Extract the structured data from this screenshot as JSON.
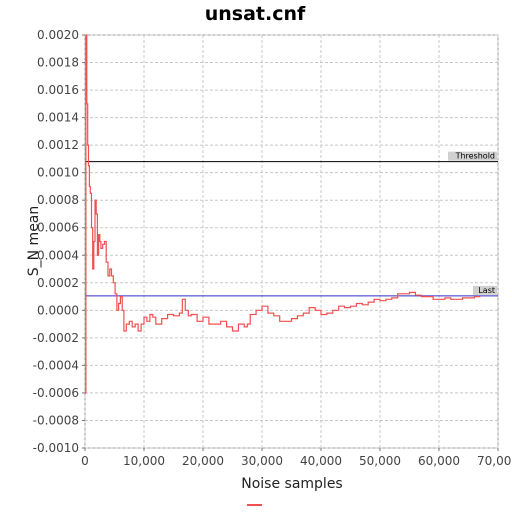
{
  "chart_data": {
    "type": "line",
    "title": "unsat.cnf",
    "xlabel": "Noise samples",
    "ylabel": "S_N mean",
    "xlim": [
      0,
      70000
    ],
    "ylim": [
      -0.001,
      0.002
    ],
    "xticks": [
      0,
      10000,
      20000,
      30000,
      40000,
      50000,
      60000,
      70000
    ],
    "xtick_labels": [
      "0",
      "10,000",
      "20,000",
      "30,000",
      "40,000",
      "50,000",
      "60,000",
      "70,000"
    ],
    "yticks": [
      -0.001,
      -0.0008,
      -0.0006,
      -0.0004,
      -0.0002,
      0.0,
      0.0002,
      0.0004,
      0.0006,
      0.0008,
      0.001,
      0.0012,
      0.0014,
      0.0016,
      0.0018,
      0.002
    ],
    "ytick_labels": [
      "-0.0010",
      "-0.0008",
      "-0.0006",
      "-0.0004",
      "-0.0002",
      "0.0000",
      "0.0002",
      "0.0004",
      "0.0006",
      "0.0008",
      "0.0010",
      "0.0012",
      "0.0014",
      "0.0016",
      "0.0018",
      "0.0020"
    ],
    "grid": true,
    "legend": "bottom-center",
    "series": [
      {
        "color": "#f05050",
        "x": [
          0,
          150,
          300,
          450,
          600,
          750,
          900,
          1100,
          1300,
          1500,
          1700,
          1900,
          2100,
          2300,
          2500,
          2700,
          3000,
          3300,
          3600,
          3900,
          4200,
          4500,
          4800,
          5100,
          5400,
          5700,
          6000,
          6300,
          6600,
          7000,
          7500,
          8000,
          8500,
          9000,
          9500,
          10000,
          10500,
          11000,
          11500,
          12000,
          13000,
          14000,
          15000,
          16000,
          16500,
          17000,
          17500,
          18000,
          19000,
          20000,
          21000,
          22000,
          23000,
          24000,
          25000,
          26000,
          27000,
          27500,
          28000,
          29000,
          30000,
          31000,
          32000,
          33000,
          34000,
          35000,
          36000,
          37000,
          38000,
          39000,
          40000,
          41000,
          42000,
          43000,
          44000,
          45000,
          46000,
          47000,
          48000,
          49000,
          50000,
          51000,
          52000,
          53000,
          54000,
          55000,
          56000,
          57000,
          58000,
          59000,
          60000,
          61000,
          62000,
          63000,
          64000,
          65000,
          66000,
          67000
        ],
        "y": [
          -0.0006,
          0.002,
          0.0015,
          0.0012,
          0.00105,
          0.0009,
          0.00085,
          0.0006,
          0.0003,
          0.0005,
          0.0008,
          0.0007,
          0.0004,
          0.00055,
          0.0005,
          0.00045,
          0.00048,
          0.0005,
          0.00035,
          0.00025,
          0.0003,
          0.00025,
          0.0002,
          0.00012,
          0.0,
          5e-05,
          0.0001,
          0.0,
          -0.00015,
          -0.0001,
          -8e-05,
          -0.00012,
          -0.0001,
          -0.00015,
          -0.0001,
          -5e-05,
          -8e-05,
          -3e-05,
          -5e-05,
          -0.0001,
          -6e-05,
          -3e-05,
          -4e-05,
          -2e-05,
          8e-05,
          0.0,
          -4e-05,
          -3e-05,
          -8e-05,
          -5e-05,
          -0.0001,
          -0.0001,
          -8e-05,
          -0.00012,
          -0.00015,
          -0.0001,
          -0.00012,
          -0.0001,
          -3e-05,
          0.0,
          3e-05,
          -2e-05,
          -4e-05,
          -8e-05,
          -8e-05,
          -6e-05,
          -4e-05,
          -2e-05,
          2e-05,
          0.0,
          -3e-05,
          -2e-05,
          0.0,
          3e-05,
          2e-05,
          3e-05,
          5e-05,
          4e-05,
          6e-05,
          8e-05,
          7e-05,
          8e-05,
          9e-05,
          0.00012,
          0.00012,
          0.00013,
          0.00011,
          0.0001,
          0.0001,
          8e-05,
          8e-05,
          9e-05,
          8e-05,
          8e-05,
          9e-05,
          9e-05,
          0.0001,
          0.0001
        ]
      }
    ],
    "reference_lines": [
      {
        "label": "Threshold",
        "y": 0.00108,
        "color": "#000000"
      },
      {
        "label": "Last",
        "y": 0.000105,
        "color": "#3030c0"
      }
    ]
  }
}
